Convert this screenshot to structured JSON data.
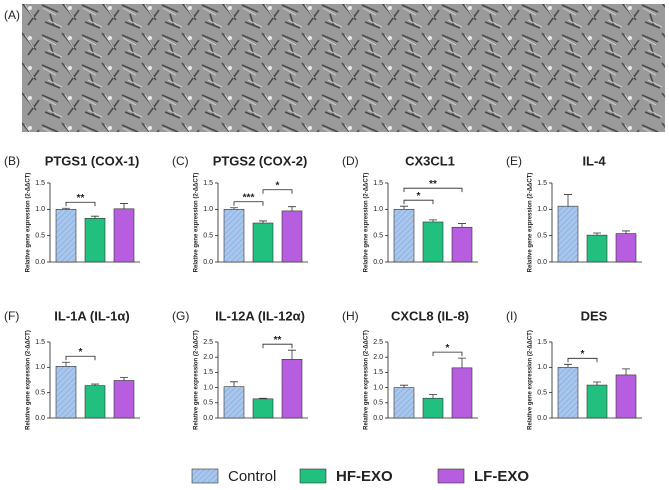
{
  "figure_label": "(A)",
  "legend": [
    {
      "name": "Control",
      "color": "#a9c6ec",
      "label_color": "#222222"
    },
    {
      "name": "HF-EXO",
      "color": "#22c07e",
      "label_color": "#1aa86c"
    },
    {
      "name": "LF-EXO",
      "color": "#b65de0",
      "label_color": "#a54ad0"
    }
  ],
  "chart_data": [
    {
      "type": "bar",
      "panel_label": "(B)",
      "title": "PTGS1 (COX-1)",
      "y_label": "Relative gene expression (2-ΔΔCT)",
      "values": [
        1.0,
        0.83,
        1.01
      ],
      "errors": [
        0.02,
        0.04,
        0.1
      ],
      "ylim": [
        0,
        1.5
      ],
      "yticks": [
        {
          "value": 0,
          "label": "0.0"
        },
        {
          "value": 0.5,
          "label": "0.5"
        },
        {
          "value": 1,
          "label": "1.0"
        },
        {
          "value": 1.5,
          "label": "1.5"
        }
      ],
      "annotations": [
        {
          "text": "**",
          "from": 0,
          "to": 1
        }
      ]
    },
    {
      "type": "bar",
      "panel_label": "(C)",
      "title": "PTGS2 (COX-2)",
      "y_label": "Relative gene expression (2-ΔΔCT)",
      "values": [
        1.0,
        0.74,
        0.97
      ],
      "errors": [
        0.03,
        0.04,
        0.08
      ],
      "ylim": [
        0,
        1.5
      ],
      "yticks": [
        {
          "value": 0,
          "label": "0.0"
        },
        {
          "value": 0.5,
          "label": "0.5"
        },
        {
          "value": 1,
          "label": "1.0"
        },
        {
          "value": 1.5,
          "label": "1.5"
        }
      ],
      "annotations": [
        {
          "text": "***",
          "from": 0,
          "to": 1
        },
        {
          "text": "*",
          "from": 1,
          "to": 2
        }
      ]
    },
    {
      "type": "bar",
      "panel_label": "(D)",
      "title": "CX3CL1",
      "y_label": "Relative gene expression (2-ΔΔCT)",
      "values": [
        1.0,
        0.76,
        0.66
      ],
      "errors": [
        0.06,
        0.04,
        0.07
      ],
      "ylim": [
        0,
        1.5
      ],
      "yticks": [
        {
          "value": 0,
          "label": "0.0"
        },
        {
          "value": 0.5,
          "label": "0.5"
        },
        {
          "value": 1,
          "label": "1.0"
        },
        {
          "value": 1.5,
          "label": "1.5"
        }
      ],
      "annotations": [
        {
          "text": "*",
          "from": 0,
          "to": 1
        },
        {
          "text": "**",
          "from": 0,
          "to": 2
        }
      ]
    },
    {
      "type": "bar",
      "panel_label": "(E)",
      "title": "IL-4",
      "y_label": "Relative gene expression (2-ΔΔCT)",
      "values": [
        1.06,
        0.51,
        0.54
      ],
      "errors": [
        0.22,
        0.04,
        0.05
      ],
      "ylim": [
        0,
        1.5
      ],
      "yticks": [
        {
          "value": 0,
          "label": "0.0"
        },
        {
          "value": 0.5,
          "label": "0.5"
        },
        {
          "value": 1,
          "label": "1.0"
        },
        {
          "value": 1.5,
          "label": "1.5"
        }
      ],
      "annotations": []
    },
    {
      "type": "bar",
      "panel_label": "(F)",
      "title": "IL-1A (IL-1α)",
      "y_label": "Relative gene expression (2-ΔΔCT)",
      "values": [
        1.02,
        0.64,
        0.74
      ],
      "errors": [
        0.08,
        0.03,
        0.06
      ],
      "ylim": [
        0,
        1.5
      ],
      "yticks": [
        {
          "value": 0,
          "label": "0.0"
        },
        {
          "value": 0.5,
          "label": "0.5"
        },
        {
          "value": 1,
          "label": "1.0"
        },
        {
          "value": 1.5,
          "label": "1.5"
        }
      ],
      "annotations": [
        {
          "text": "*",
          "from": 0,
          "to": 1
        }
      ]
    },
    {
      "type": "bar",
      "panel_label": "(G)",
      "title": "IL-12A (IL-12α)",
      "y_label": "Relative gene expression (2-ΔΔCT)",
      "values": [
        1.03,
        0.63,
        1.93
      ],
      "errors": [
        0.16,
        0.02,
        0.3
      ],
      "ylim": [
        0,
        2.5
      ],
      "yticks": [
        {
          "value": 0,
          "label": "0.0"
        },
        {
          "value": 0.5,
          "label": "0.5"
        },
        {
          "value": 1,
          "label": "1.0"
        },
        {
          "value": 1.5,
          "label": "1.5"
        },
        {
          "value": 2,
          "label": "2.0"
        },
        {
          "value": 2.5,
          "label": "2.5"
        }
      ],
      "annotations": [
        {
          "text": "**",
          "from": 1,
          "to": 2
        }
      ]
    },
    {
      "type": "bar",
      "panel_label": "(H)",
      "title": "CXCL8 (IL-8)",
      "y_label": "Relative gene expression (2-ΔΔCT)",
      "values": [
        1.0,
        0.65,
        1.65
      ],
      "errors": [
        0.08,
        0.12,
        0.32
      ],
      "ylim": [
        0,
        2.5
      ],
      "yticks": [
        {
          "value": 0,
          "label": "0.0"
        },
        {
          "value": 0.5,
          "label": "0.5"
        },
        {
          "value": 1,
          "label": "1.0"
        },
        {
          "value": 1.5,
          "label": "1.5"
        },
        {
          "value": 2,
          "label": "2.0"
        },
        {
          "value": 2.5,
          "label": "2.5"
        }
      ],
      "annotations": [
        {
          "text": "*",
          "from": 1,
          "to": 2
        }
      ]
    },
    {
      "type": "bar",
      "panel_label": "(I)",
      "title": "DES",
      "y_label": "Relative gene expression (2-ΔΔCT)",
      "values": [
        1.0,
        0.65,
        0.85
      ],
      "errors": [
        0.06,
        0.06,
        0.12
      ],
      "ylim": [
        0,
        1.5
      ],
      "yticks": [
        {
          "value": 0,
          "label": "0.0"
        },
        {
          "value": 0.5,
          "label": "0.5"
        },
        {
          "value": 1,
          "label": "1.0"
        },
        {
          "value": 1.5,
          "label": "1.5"
        }
      ],
      "annotations": [
        {
          "text": "*",
          "from": 0,
          "to": 1
        }
      ]
    }
  ]
}
